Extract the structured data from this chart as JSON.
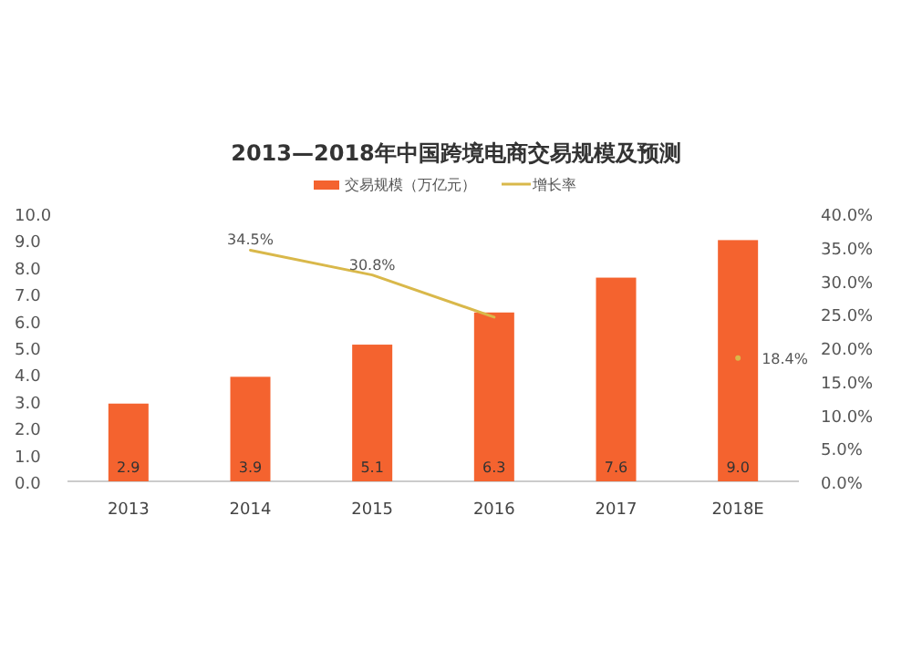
{
  "chart_data": {
    "type": "bar",
    "title": "2013—2018年中国跨境电商交易规模及预测",
    "categories": [
      "2013",
      "2014",
      "2015",
      "2016",
      "2017",
      "2018E"
    ],
    "series": [
      {
        "name": "交易规模（万亿元）",
        "color": "#f4632f",
        "values": [
          2.9,
          3.9,
          5.1,
          6.3,
          7.6,
          9.0
        ],
        "value_labels": [
          "2.9",
          "3.9",
          "5.1",
          "6.3",
          "7.6",
          "9.0"
        ]
      },
      {
        "name": "增长率",
        "type": "line",
        "axis": "y2",
        "color": "#d9b84a",
        "values": [
          null,
          34.5,
          30.8,
          24.5,
          null,
          18.4
        ],
        "value_labels": [
          null,
          "34.5%",
          "30.8%",
          null,
          null,
          "18.4%"
        ]
      }
    ],
    "ylim": [
      0,
      10
    ],
    "yticks": [
      {
        "value": 0,
        "label": "0.0"
      },
      {
        "value": 1,
        "label": "1.0"
      },
      {
        "value": 2,
        "label": "2.0"
      },
      {
        "value": 3,
        "label": "3.0"
      },
      {
        "value": 4,
        "label": "4.0"
      },
      {
        "value": 5,
        "label": "5.0"
      },
      {
        "value": 6,
        "label": "6.0"
      },
      {
        "value": 7,
        "label": "7.0"
      },
      {
        "value": 8,
        "label": "8.0"
      },
      {
        "value": 9,
        "label": "9.0"
      },
      {
        "value": 10,
        "label": "10.0"
      }
    ],
    "y2lim": [
      0,
      40
    ],
    "y2ticks": [
      {
        "value": 0,
        "label": "0.0%"
      },
      {
        "value": 5,
        "label": "5.0%"
      },
      {
        "value": 10,
        "label": "10.0%"
      },
      {
        "value": 15,
        "label": "15.0%"
      },
      {
        "value": 20,
        "label": "20.0%"
      },
      {
        "value": 25,
        "label": "25.0%"
      },
      {
        "value": 30,
        "label": "30.0%"
      },
      {
        "value": 35,
        "label": "35.0%"
      },
      {
        "value": 40,
        "label": "40.0%"
      }
    ],
    "legend": "top",
    "grid": false
  }
}
